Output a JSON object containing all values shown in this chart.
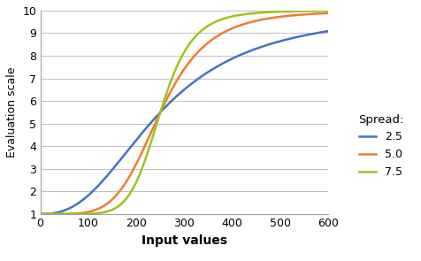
{
  "title": "",
  "xlabel": "Input values",
  "ylabel": "Evaluation scale",
  "xlim": [
    0,
    600
  ],
  "ylim": [
    1,
    10
  ],
  "xticks": [
    0,
    100,
    200,
    300,
    400,
    500,
    600
  ],
  "yticks": [
    1,
    2,
    3,
    4,
    5,
    6,
    7,
    8,
    9,
    10
  ],
  "legend_title": "Spread:",
  "series": [
    {
      "label": "2.5",
      "spread": 2.5,
      "color": "#4472c4"
    },
    {
      "label": "5.0",
      "spread": 5.0,
      "color": "#ed7d31"
    },
    {
      "label": "7.5",
      "spread": 7.5,
      "color": "#9dc31f"
    }
  ],
  "midpoint": 250,
  "min_val": 1,
  "max_val": 10,
  "background_color": "#ffffff",
  "grid_color": "#c0c0c0",
  "line_width": 1.8,
  "figwidth": 4.76,
  "figheight": 2.95,
  "dpi": 100
}
